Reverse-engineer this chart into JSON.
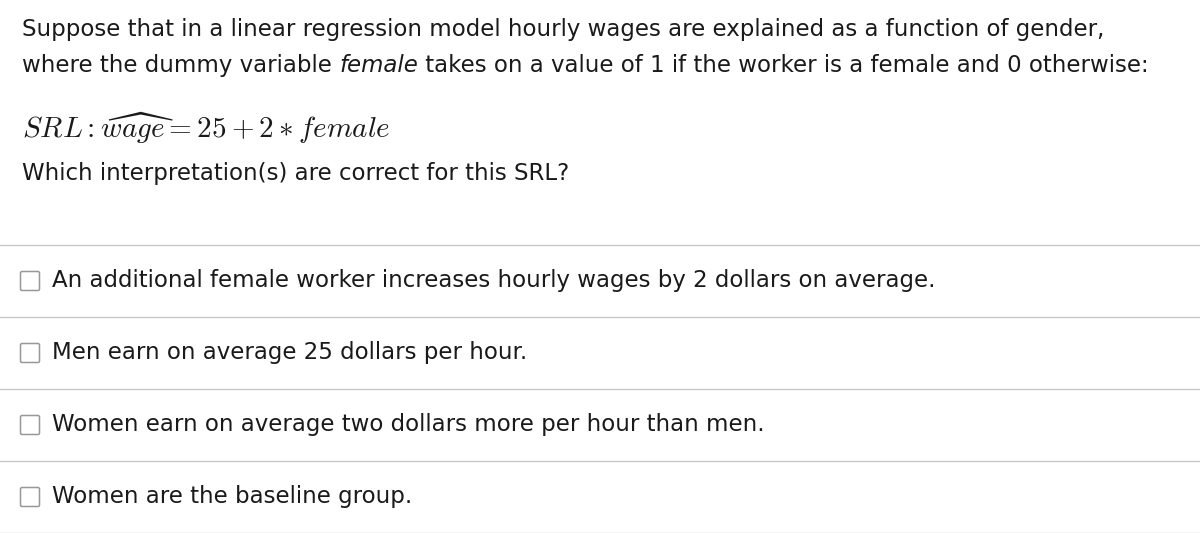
{
  "background_color": "#ffffff",
  "text_color": "#1a1a1a",
  "line_color": "#c8c8c8",
  "paragraph1_line1": "Suppose that in a linear regression model hourly wages are explained as a function of gender,",
  "line2_part1": "where the dummy variable ",
  "line2_italic": "female",
  "line2_part2": " takes on a value of 1 if the worker is a female and 0 otherwise:",
  "equation": "$\\mathit{SRL} : \\widehat{\\mathit{wage}} = 25 + 2 * \\mathit{female}$",
  "question": "Which interpretation(s) are correct for this SRL?",
  "options": [
    "An additional female worker increases hourly wages by 2 dollars on average.",
    "Men earn on average 25 dollars per hour.",
    "Women earn on average two dollars more per hour than men.",
    "Women are the baseline group."
  ],
  "font_size_body": 16.5,
  "font_size_equation": 21,
  "figsize": [
    12.0,
    5.33
  ],
  "dpi": 100
}
